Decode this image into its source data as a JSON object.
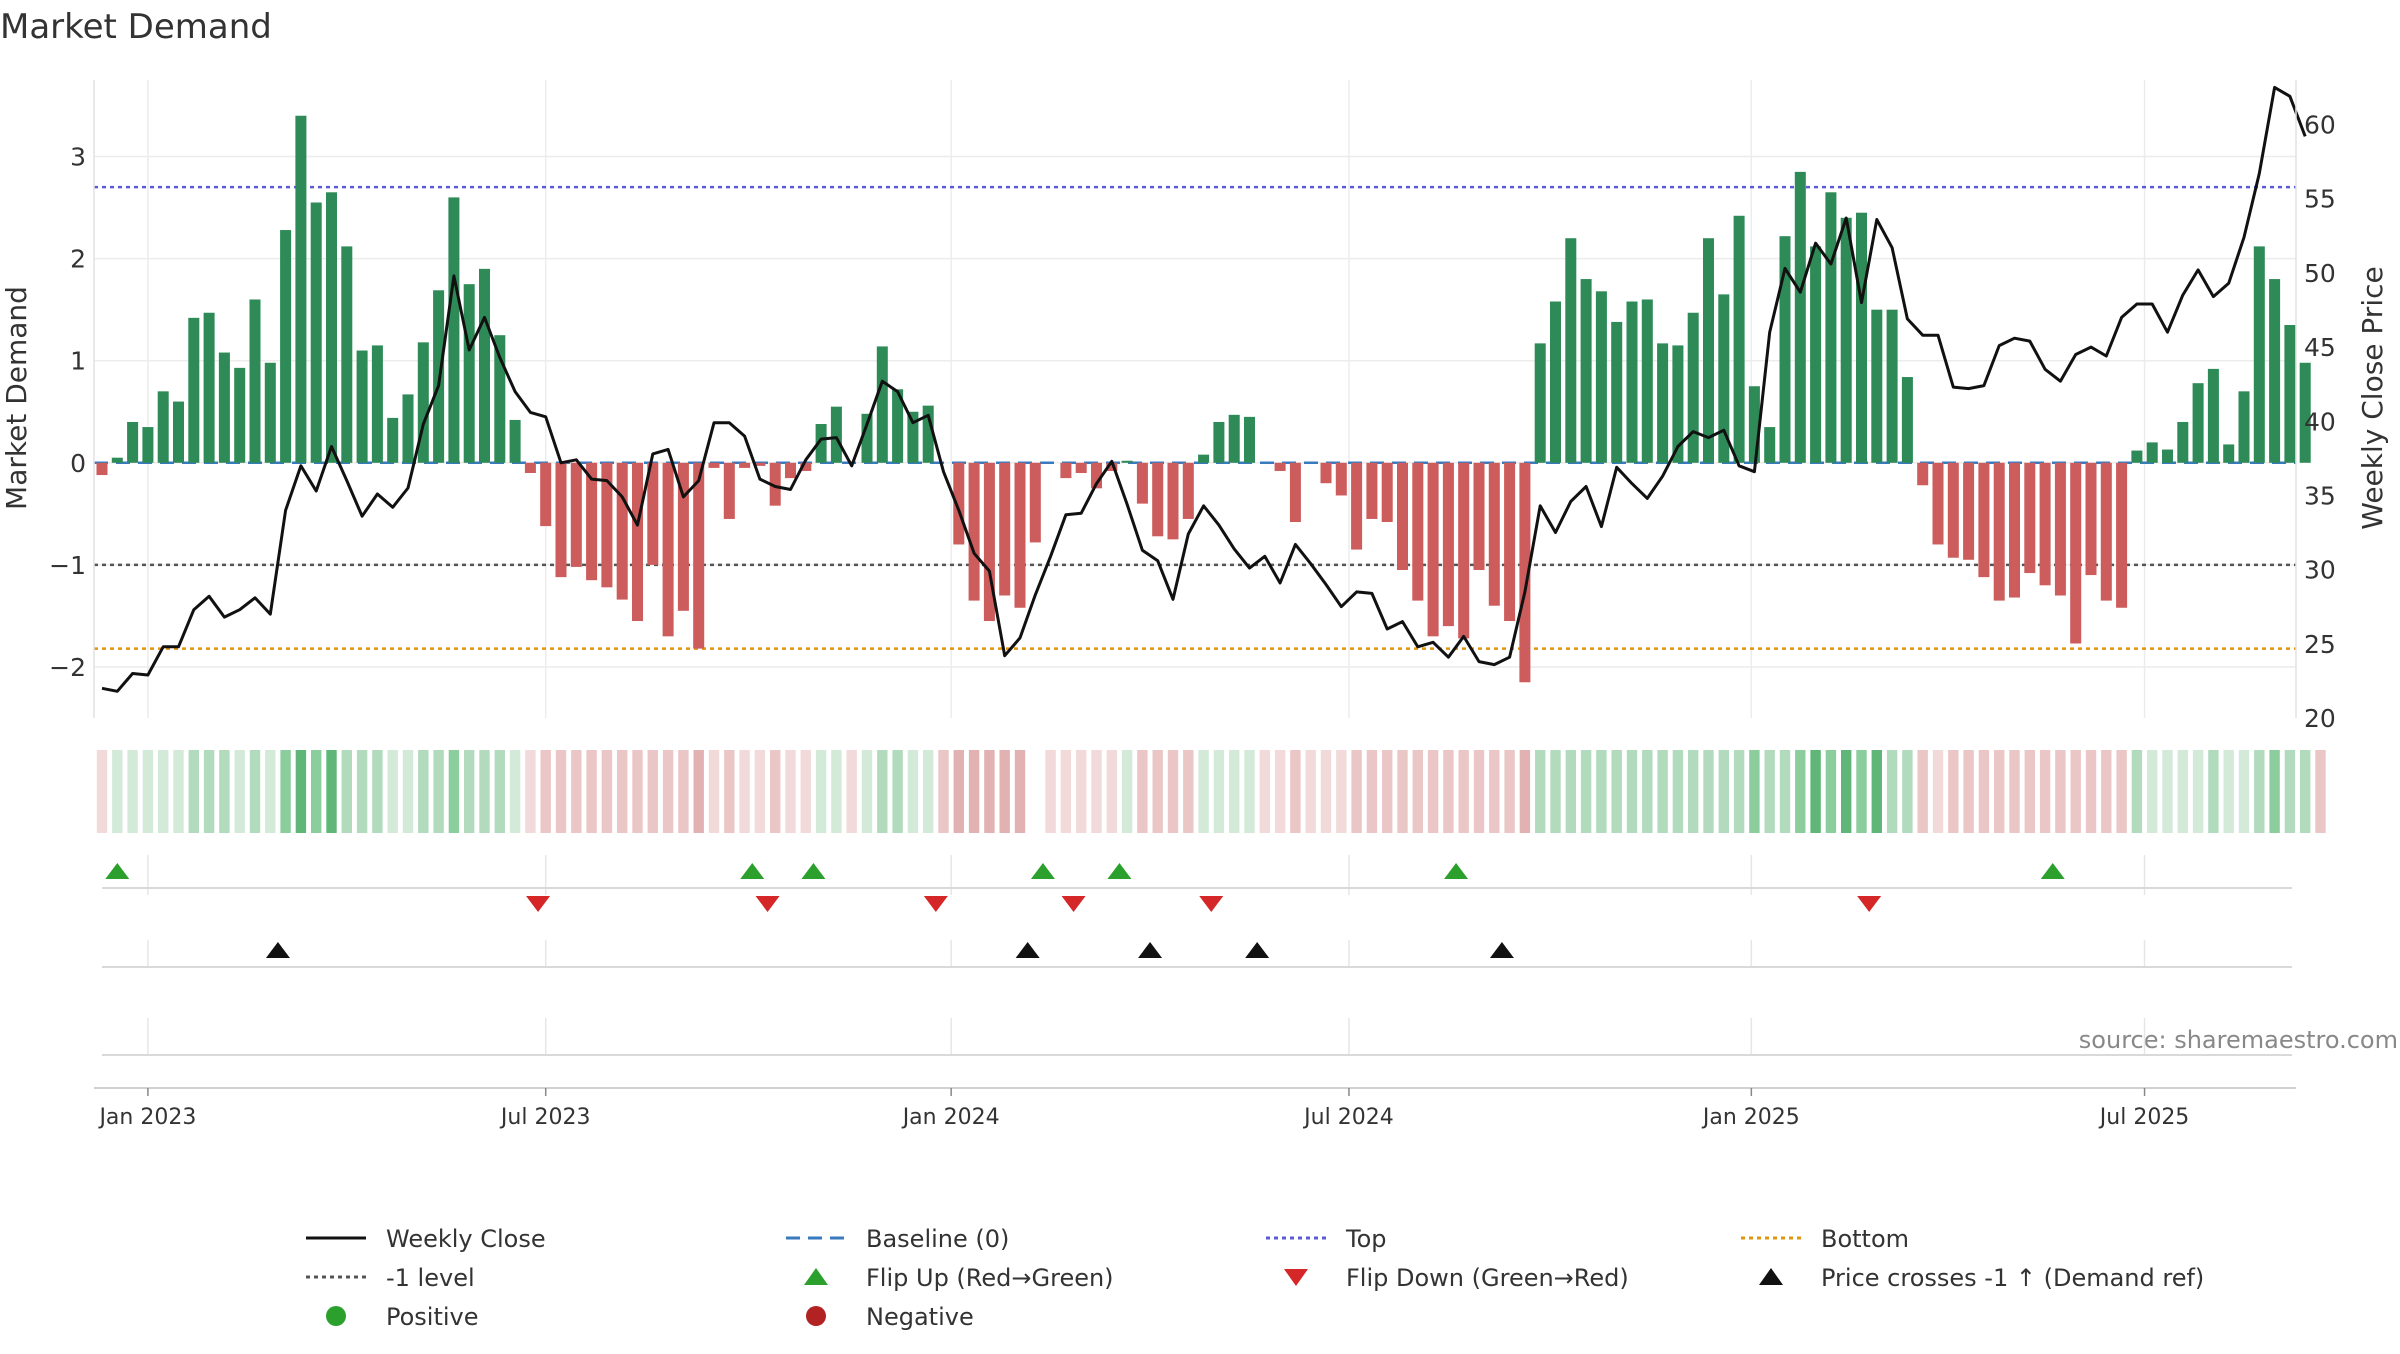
{
  "title": "Market Demand",
  "source": "source: sharemaestro.com",
  "axes": {
    "left_label": "Market Demand",
    "right_label": "Weekly Close Price",
    "left_ticks": [
      3,
      2,
      1,
      0,
      -1,
      -2
    ],
    "left_tick_labels": [
      "3",
      "2",
      "1",
      "0",
      "−1",
      "−2"
    ],
    "right_ticks": [
      60,
      55,
      50,
      45,
      40,
      35,
      30,
      25,
      20
    ],
    "right_tick_labels": [
      "60",
      "55",
      "50",
      "45",
      "40",
      "35",
      "30",
      "25",
      "20"
    ],
    "x_ticks": [
      {
        "week": 3,
        "label": "Jan 2023"
      },
      {
        "week": 29,
        "label": "Jul 2023"
      },
      {
        "week": 55.5,
        "label": "Jan 2024"
      },
      {
        "week": 81.5,
        "label": "Jul 2024"
      },
      {
        "week": 107.8,
        "label": "Jan 2025"
      },
      {
        "week": 133.5,
        "label": "Jul 2025"
      }
    ]
  },
  "legend": [
    {
      "key": "weekly_close",
      "label": "Weekly Close",
      "symbol": "line",
      "color": "#111111"
    },
    {
      "key": "baseline",
      "label": "Baseline (0)",
      "symbol": "dashed",
      "color": "#3a7bbf"
    },
    {
      "key": "top",
      "label": "Top",
      "symbol": "dotted",
      "color": "#5b5bd6"
    },
    {
      "key": "bottom",
      "label": "Bottom",
      "symbol": "dotted",
      "color": "#e0950e"
    },
    {
      "key": "minus1",
      "label": "-1 level",
      "symbol": "dotted",
      "color": "#555555"
    },
    {
      "key": "flip_up",
      "label": "Flip Up (Red→Green)",
      "symbol": "tri-up",
      "color": "#2ca02c"
    },
    {
      "key": "flip_down",
      "label": "Flip Down (Green→Red)",
      "symbol": "tri-down",
      "color": "#d62728"
    },
    {
      "key": "price_cross",
      "label": "Price crosses -1 ↑ (Demand ref)",
      "symbol": "tri-up",
      "color": "#111111"
    },
    {
      "key": "positive",
      "label": "Positive",
      "symbol": "dot",
      "color": "#2ca02c"
    },
    {
      "key": "negative",
      "label": "Negative",
      "symbol": "dot",
      "color": "#b22222"
    }
  ],
  "colors": {
    "positive_bar": "#2e8b57",
    "negative_bar": "#cd5c5c"
  },
  "chart_data": {
    "type": "bar+line",
    "x_unit": "weeks since 2022-12-19",
    "demand_ylim": [
      -2.5,
      3.75
    ],
    "price_ylim": [
      20,
      63
    ],
    "levels": {
      "top": 2.7,
      "bottom": -1.82,
      "minus1": -1.0,
      "baseline": 0
    },
    "demand": [
      -0.12,
      0.05,
      0.4,
      0.35,
      0.7,
      0.6,
      1.42,
      1.47,
      1.08,
      0.93,
      1.6,
      0.98,
      2.28,
      3.4,
      2.55,
      2.65,
      2.12,
      1.1,
      1.15,
      0.44,
      0.67,
      1.18,
      1.69,
      2.6,
      1.75,
      1.9,
      1.25,
      0.42,
      -0.1,
      -0.62,
      -1.12,
      -1.02,
      -1.15,
      -1.22,
      -1.34,
      -1.55,
      -1.0,
      -1.7,
      -1.45,
      -1.82,
      -0.05,
      -0.55,
      -0.05,
      -0.03,
      -0.42,
      -0.15,
      -0.08,
      0.38,
      0.55,
      0.0,
      0.48,
      1.14,
      0.72,
      0.5,
      0.56,
      0.0,
      -0.8,
      -1.35,
      -1.55,
      -1.3,
      -1.42,
      -0.78,
      0.0,
      -0.15,
      -0.1,
      -0.25,
      -0.08,
      0.02,
      -0.4,
      -0.72,
      -0.75,
      -0.55,
      0.08,
      0.4,
      0.47,
      0.45,
      0.0,
      -0.08,
      -0.58,
      0.0,
      -0.2,
      -0.32,
      -0.85,
      -0.55,
      -0.58,
      -1.05,
      -1.35,
      -1.7,
      -1.6,
      -1.72,
      -1.05,
      -1.4,
      -1.55,
      -2.15,
      1.17,
      1.58,
      2.2,
      1.8,
      1.68,
      1.38,
      1.58,
      1.6,
      1.17,
      1.15,
      1.47,
      2.2,
      1.65,
      2.42,
      0.75,
      0.35,
      2.22,
      2.85,
      2.12,
      2.65,
      2.4,
      2.45,
      1.5,
      1.5,
      0.84,
      -0.22,
      -0.8,
      -0.93,
      -0.95,
      -1.12,
      -1.35,
      -1.32,
      -1.08,
      -1.2,
      -1.3,
      -1.77,
      -1.1,
      -1.35,
      -1.42,
      0.12,
      0.2,
      0.13,
      0.4,
      0.78,
      0.92,
      0.18,
      0.7,
      2.12,
      1.8,
      1.35,
      0.98
    ],
    "close": [
      22.0,
      21.8,
      23.0,
      22.9,
      24.8,
      24.8,
      27.3,
      28.2,
      26.8,
      27.3,
      28.1,
      27.0,
      34.0,
      37.0,
      35.3,
      38.3,
      36.0,
      33.6,
      35.1,
      34.2,
      35.5,
      39.8,
      42.4,
      49.8,
      44.8,
      47.0,
      44.3,
      42.0,
      40.6,
      40.3,
      37.2,
      37.4,
      36.1,
      36.0,
      34.9,
      33.0,
      37.8,
      38.1,
      34.9,
      36.0,
      39.9,
      39.9,
      39.0,
      36.1,
      35.6,
      35.4,
      37.4,
      38.8,
      38.9,
      37.0,
      39.8,
      42.7,
      42.0,
      39.9,
      40.4,
      36.6,
      34.0,
      31.1,
      29.9,
      24.2,
      25.4,
      28.3,
      30.9,
      33.7,
      33.8,
      35.8,
      37.3,
      34.4,
      31.3,
      30.6,
      28.0,
      32.4,
      34.3,
      33.0,
      31.4,
      30.1,
      30.9,
      29.1,
      31.7,
      30.4,
      29.0,
      27.5,
      28.5,
      28.4,
      26.0,
      26.5,
      24.8,
      25.1,
      24.1,
      25.5,
      23.8,
      23.6,
      24.1,
      28.5,
      34.3,
      32.5,
      34.6,
      35.6,
      32.9,
      36.9,
      35.8,
      34.8,
      36.3,
      38.3,
      39.3,
      38.9,
      39.4,
      37.0,
      36.6,
      46.0,
      50.3,
      48.7,
      52.0,
      50.6,
      53.7,
      48.0,
      53.6,
      51.7,
      46.9,
      45.8,
      45.8,
      42.3,
      42.2,
      42.4,
      45.1,
      45.6,
      45.4,
      43.5,
      42.7,
      44.5,
      45.0,
      44.4,
      47.0,
      47.9,
      47.9,
      46.0,
      48.5,
      50.2,
      48.4,
      49.3,
      52.4,
      56.7,
      62.5,
      61.9,
      59.2
    ],
    "shade_levels": [
      1,
      1,
      1,
      1,
      1,
      1,
      2,
      2,
      2,
      1,
      2,
      1,
      3,
      4,
      3,
      4,
      2,
      2,
      2,
      1,
      1,
      2,
      2,
      3,
      2,
      2,
      2,
      1,
      1,
      2,
      2,
      2,
      2,
      2,
      2,
      2,
      2,
      2,
      2,
      3,
      1,
      2,
      1,
      1,
      2,
      1,
      1,
      1,
      1,
      1,
      1,
      2,
      2,
      1,
      1,
      2,
      3,
      3,
      3,
      3,
      3,
      null,
      1,
      1,
      1,
      1,
      1,
      1,
      2,
      2,
      2,
      2,
      1,
      1,
      1,
      1,
      1,
      1,
      2,
      1,
      1,
      1,
      2,
      2,
      2,
      2,
      2,
      2,
      2,
      2,
      2,
      2,
      2,
      3,
      2,
      2,
      2,
      2,
      2,
      2,
      2,
      2,
      2,
      2,
      2,
      2,
      2,
      2,
      3,
      2,
      2,
      3,
      4,
      3,
      4,
      3,
      4,
      2,
      2,
      2,
      1,
      2,
      2,
      2,
      2,
      2,
      2,
      2,
      2,
      2,
      2,
      2,
      2,
      2,
      1,
      1,
      1,
      1,
      2,
      1,
      1,
      2,
      3,
      2,
      2,
      2
    ],
    "flip_up_weeks": [
      1,
      42.5,
      46.5,
      61.5,
      66.5,
      88.5,
      127.5
    ],
    "flip_down_weeks": [
      28.5,
      43.5,
      54.5,
      63.5,
      72.5,
      115.5
    ],
    "price_cross_weeks": [
      11.5,
      60.5,
      68.5,
      75.5,
      91.5
    ]
  }
}
